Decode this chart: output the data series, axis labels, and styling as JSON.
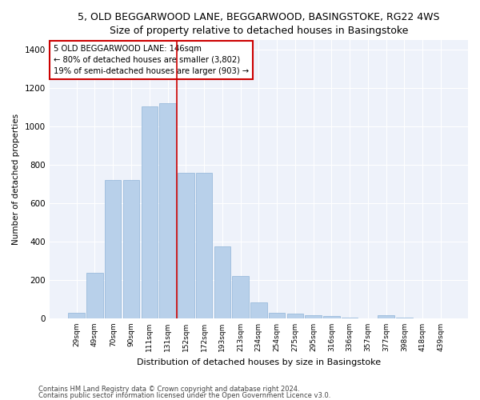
{
  "title1": "5, OLD BEGGARWOOD LANE, BEGGARWOOD, BASINGSTOKE, RG22 4WS",
  "title2": "Size of property relative to detached houses in Basingstoke",
  "xlabel": "Distribution of detached houses by size in Basingstoke",
  "ylabel": "Number of detached properties",
  "categories": [
    "29sqm",
    "49sqm",
    "70sqm",
    "90sqm",
    "111sqm",
    "131sqm",
    "152sqm",
    "172sqm",
    "193sqm",
    "213sqm",
    "234sqm",
    "254sqm",
    "275sqm",
    "295sqm",
    "316sqm",
    "336sqm",
    "357sqm",
    "377sqm",
    "398sqm",
    "418sqm",
    "439sqm"
  ],
  "values": [
    28,
    238,
    720,
    720,
    1105,
    1120,
    760,
    760,
    375,
    220,
    85,
    30,
    25,
    18,
    12,
    5,
    0,
    18,
    5,
    0,
    0
  ],
  "bar_color": "#b8d0ea",
  "bar_edge_color": "#8fb4d8",
  "vline_x_index": 6,
  "vline_color": "#cc0000",
  "annotation_text": "5 OLD BEGGARWOOD LANE: 146sqm\n← 80% of detached houses are smaller (3,802)\n19% of semi-detached houses are larger (903) →",
  "box_color": "#cc0000",
  "footnote1": "Contains HM Land Registry data © Crown copyright and database right 2024.",
  "footnote2": "Contains public sector information licensed under the Open Government Licence v3.0.",
  "ylim": [
    0,
    1450
  ],
  "yticks": [
    0,
    200,
    400,
    600,
    800,
    1000,
    1200,
    1400
  ],
  "bg_color": "#eef2fa",
  "title1_fontsize": 9,
  "title2_fontsize": 8.5,
  "bar_width": 0.9
}
